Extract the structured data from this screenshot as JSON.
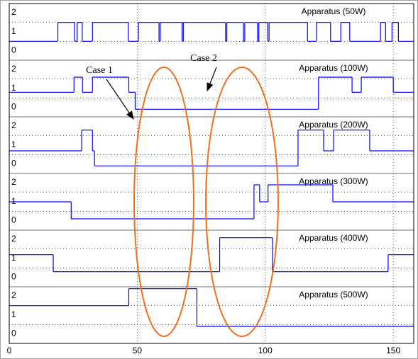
{
  "chart_data": [
    {
      "type": "line",
      "step": "post",
      "name": "Apparatus (50W)",
      "color": "#0000ff",
      "xlim": [
        0,
        158
      ],
      "ylim": [
        -1,
        2
      ],
      "yticks": [
        0,
        1,
        2
      ],
      "grid": true,
      "x": [
        0,
        19,
        25.5,
        26.5,
        28.5,
        32.5,
        46.5,
        50.5,
        58.5,
        59,
        67.5,
        68,
        84.5,
        85,
        91.5,
        92,
        97,
        97.5,
        101,
        101.5,
        116.5,
        120,
        125.5,
        129.5,
        133,
        145,
        147,
        149.5,
        152
      ],
      "values": [
        0,
        1,
        0,
        1,
        0,
        1,
        0,
        1,
        0,
        1,
        0,
        1,
        0,
        1,
        0,
        1,
        0,
        1,
        0,
        1,
        0,
        1,
        0,
        1,
        0,
        1,
        0,
        1,
        0
      ]
    },
    {
      "type": "line",
      "step": "post",
      "name": "Apparatus (100W)",
      "color": "#0000ff",
      "xlim": [
        0,
        158
      ],
      "ylim": [
        -1,
        2
      ],
      "yticks": [
        0,
        1,
        2
      ],
      "grid": true,
      "x": [
        0,
        25.3,
        28.6,
        32.5,
        46.7,
        49.2,
        120.8,
        133.9,
        137.5,
        150
      ],
      "values": [
        0.3,
        1.1,
        0.3,
        1.1,
        0.3,
        -0.6,
        1.1,
        0.3,
        1.1,
        0.3
      ]
    },
    {
      "type": "line",
      "step": "post",
      "name": "Apparatus (200W)",
      "color": "#0000ff",
      "xlim": [
        0,
        158
      ],
      "ylim": [
        -1,
        2
      ],
      "yticks": [
        0,
        1,
        2
      ],
      "grid": true,
      "x": [
        0,
        28.3,
        32.5,
        33.3,
        112.8,
        122.8,
        126.7,
        140.8
      ],
      "values": [
        0.2,
        1.3,
        0.2,
        -0.6,
        1.3,
        0.2,
        1.3,
        0.2
      ]
    },
    {
      "type": "line",
      "step": "post",
      "name": "Apparatus (300W)",
      "color": "#0000ff",
      "xlim": [
        0,
        158
      ],
      "ylim": [
        -1,
        2
      ],
      "yticks": [
        0,
        1,
        2
      ],
      "grid": true,
      "x": [
        0,
        24.2,
        95.6,
        97.8,
        101.1,
        126.4
      ],
      "values": [
        0.5,
        -0.4,
        1.4,
        0.5,
        1.4,
        0.5
      ]
    },
    {
      "type": "line",
      "step": "post",
      "name": "Apparatus (400W)",
      "color": "#0000ff",
      "xlim": [
        0,
        158
      ],
      "ylim": [
        -1,
        2
      ],
      "yticks": [
        0,
        1,
        2
      ],
      "grid": true,
      "x": [
        0,
        17.2,
        82.2,
        102.8,
        148
      ],
      "values": [
        0.7,
        -0.2,
        1.6,
        -0.2,
        0.7
      ]
    },
    {
      "type": "line",
      "step": "post",
      "name": "Apparatus (500W)",
      "color": "#0000ff",
      "xlim": [
        0,
        158
      ],
      "ylim": [
        -1,
        2
      ],
      "yticks": [
        0,
        1,
        2
      ],
      "grid": true,
      "x": [
        0,
        46.7,
        73.3
      ],
      "values": [
        1.0,
        1.9,
        -0.1
      ],
      "xticks": [
        0,
        50,
        100,
        150
      ]
    }
  ],
  "annotations": [
    "Case 1",
    "Case 2"
  ]
}
